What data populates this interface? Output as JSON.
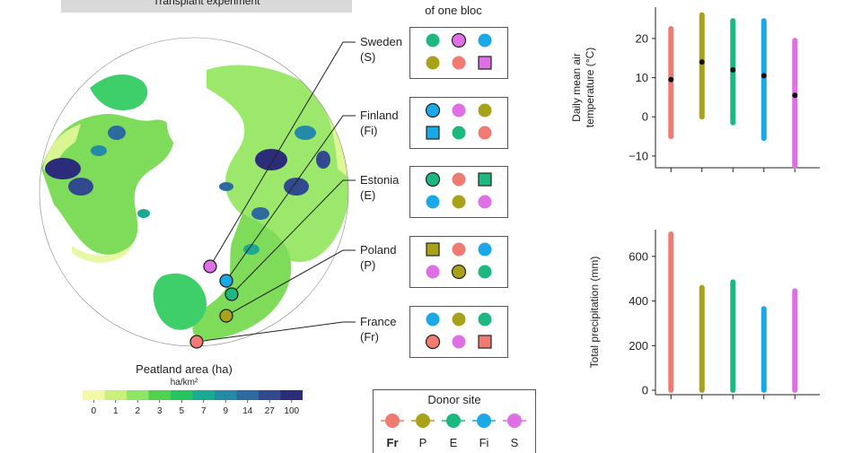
{
  "header": {
    "banner": "Transplant experiment"
  },
  "bloc": {
    "title": "of one bloc"
  },
  "colors": {
    "Fr": "#f07b72",
    "P": "#a8a21a",
    "E": "#1db87f",
    "Fi": "#1aa9e6",
    "S": "#df6fe4"
  },
  "sites": [
    {
      "code": "S",
      "name": "Sweden",
      "abbr": "(S)"
    },
    {
      "code": "Fi",
      "name": "Finland",
      "abbr": "(Fi)"
    },
    {
      "code": "E",
      "name": "Estonia",
      "abbr": "(E)"
    },
    {
      "code": "P",
      "name": "Poland",
      "abbr": "(P)"
    },
    {
      "code": "Fr",
      "name": "France",
      "abbr": "(Fr)"
    }
  ],
  "blocs": [
    {
      "site": "S",
      "cells": [
        [
          "E",
          "c"
        ],
        [
          "S",
          "ci"
        ],
        [
          "Fi",
          "c"
        ],
        [
          "P",
          "c"
        ],
        [
          "Fr",
          "c"
        ],
        [
          "S",
          "s"
        ]
      ]
    },
    {
      "site": "Fi",
      "cells": [
        [
          "Fi",
          "ci"
        ],
        [
          "S",
          "c"
        ],
        [
          "P",
          "c"
        ],
        [
          "Fi",
          "s"
        ],
        [
          "E",
          "c"
        ],
        [
          "Fr",
          "c"
        ]
      ]
    },
    {
      "site": "E",
      "cells": [
        [
          "E",
          "ci"
        ],
        [
          "Fr",
          "c"
        ],
        [
          "E",
          "s"
        ],
        [
          "Fi",
          "c"
        ],
        [
          "P",
          "c"
        ],
        [
          "S",
          "c"
        ]
      ]
    },
    {
      "site": "P",
      "cells": [
        [
          "P",
          "s"
        ],
        [
          "Fr",
          "c"
        ],
        [
          "Fi",
          "c"
        ],
        [
          "S",
          "c"
        ],
        [
          "P",
          "ci"
        ],
        [
          "E",
          "c"
        ]
      ]
    },
    {
      "site": "Fr",
      "cells": [
        [
          "Fi",
          "c"
        ],
        [
          "P",
          "c"
        ],
        [
          "E",
          "c"
        ],
        [
          "Fr",
          "ci"
        ],
        [
          "S",
          "c"
        ],
        [
          "Fr",
          "s"
        ]
      ]
    }
  ],
  "map_legend": {
    "title": "Peatland area (ha)",
    "unit": "ha/km²",
    "ticks": [
      "0",
      "1",
      "2",
      "3",
      "5",
      "7",
      "9",
      "14",
      "27",
      "100"
    ],
    "palette": [
      "#f3f7a6",
      "#c9f07c",
      "#8ee463",
      "#4fd34c",
      "#25c45e",
      "#1aa993",
      "#258aa5",
      "#2d6a9e",
      "#314a8f",
      "#2b2d7a"
    ]
  },
  "donor_legend": {
    "title": "Donor site",
    "entries": [
      "Fr",
      "P",
      "E",
      "Fi",
      "S"
    ]
  },
  "chart_data": [
    {
      "type": "range",
      "ylabel_line1": "Daily mean air",
      "ylabel_line2": "temperature (°C)",
      "ylim": [
        -13,
        28
      ],
      "yticks": [
        "20",
        "10",
        "0",
        "−10"
      ],
      "ytick_values": [
        20,
        10,
        0,
        -10
      ],
      "categories": [
        "Fr",
        "P",
        "E",
        "Fi",
        "S"
      ],
      "min": [
        -5,
        0,
        -1.5,
        -5.5,
        -12.5
      ],
      "max": [
        22.5,
        26,
        24.5,
        24.5,
        19.5
      ],
      "mean": [
        9.5,
        14,
        12,
        10.5,
        5.5
      ]
    },
    {
      "type": "bar",
      "ylabel": "Total precipitation (mm)",
      "ylim": [
        -20,
        720
      ],
      "yticks": [
        "600",
        "400",
        "200",
        "0"
      ],
      "ytick_values": [
        600,
        400,
        200,
        0
      ],
      "categories": [
        "Fr",
        "P",
        "E",
        "Fi",
        "S"
      ],
      "values": [
        700,
        460,
        485,
        365,
        445
      ]
    }
  ]
}
